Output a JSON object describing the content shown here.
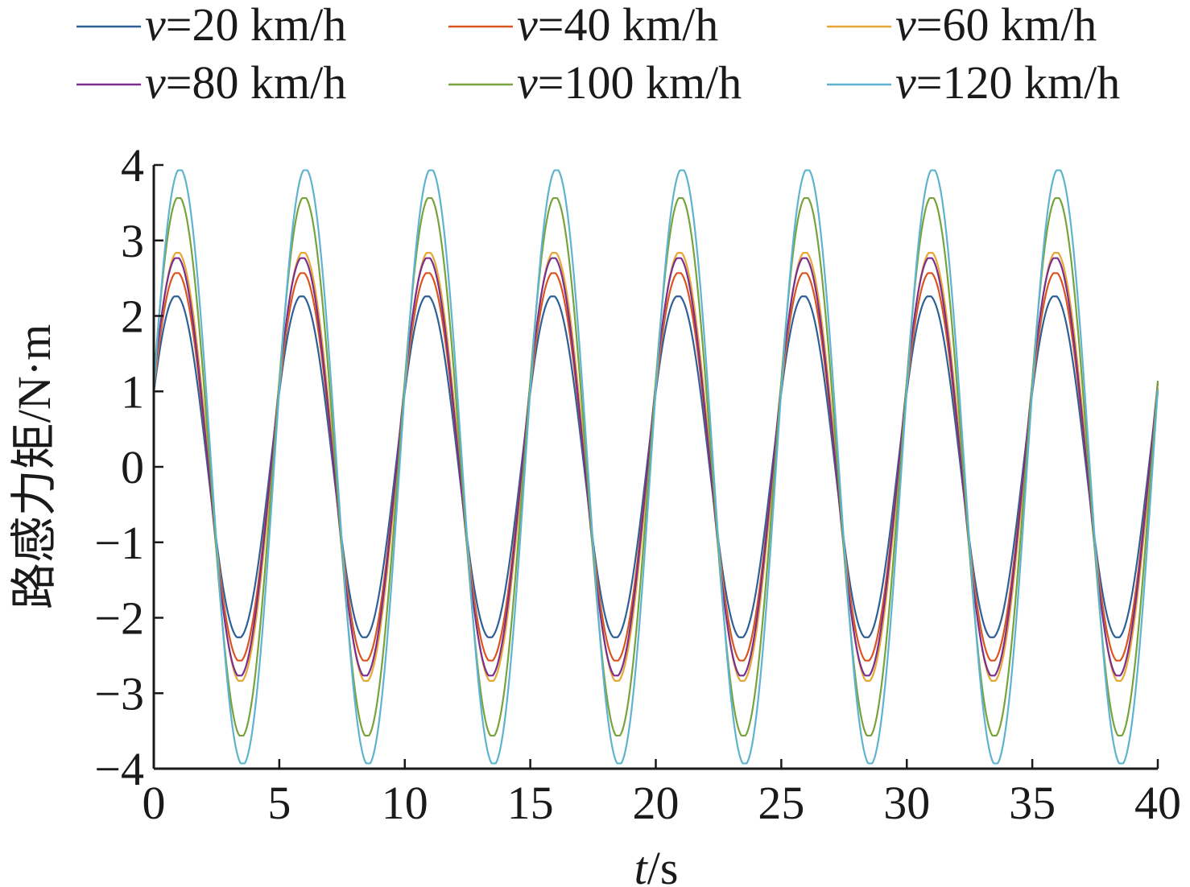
{
  "chart_data": {
    "type": "line",
    "xlabel": {
      "var": "t",
      "unit": "/s"
    },
    "ylabel": "路感力矩/N·m",
    "xlim": [
      0,
      40
    ],
    "ylim": [
      -4,
      4
    ],
    "xticks": [
      0,
      5,
      10,
      15,
      20,
      25,
      30,
      35,
      40
    ],
    "yticks": [
      4,
      3,
      2,
      1,
      0,
      -1,
      -2,
      -3,
      -4
    ],
    "ytick_labels": [
      "4",
      "3",
      "2",
      "1",
      "0",
      "−1",
      "−2",
      "−3",
      "−4"
    ],
    "grid": false,
    "legend_position": "top",
    "period": 5,
    "series": [
      {
        "name": "v=20 km/h",
        "var": "v",
        "label": "=20 km/h",
        "color": "#2e5f97",
        "amplitude": 2.27,
        "phase_offset": 0.0
      },
      {
        "name": "v=40 km/h",
        "var": "v",
        "label": "=40 km/h",
        "color": "#d9541e",
        "amplitude": 2.58,
        "phase_offset": 0.03
      },
      {
        "name": "v=60 km/h",
        "var": "v",
        "label": "=60 km/h",
        "color": "#e8a735",
        "amplitude": 2.85,
        "phase_offset": 0.06
      },
      {
        "name": "v=80 km/h",
        "var": "v",
        "label": "=80 km/h",
        "color": "#7a2e8e",
        "amplitude": 2.78,
        "phase_offset": 0.03
      },
      {
        "name": "v=100 km/h",
        "var": "v",
        "label": "=100 km/h",
        "color": "#77a33a",
        "amplitude": 3.58,
        "phase_offset": 0.1
      },
      {
        "name": "v=120 km/h",
        "var": "v",
        "label": "=120 km/h",
        "color": "#5fb3cf",
        "amplitude": 3.95,
        "phase_offset": 0.15
      }
    ]
  }
}
